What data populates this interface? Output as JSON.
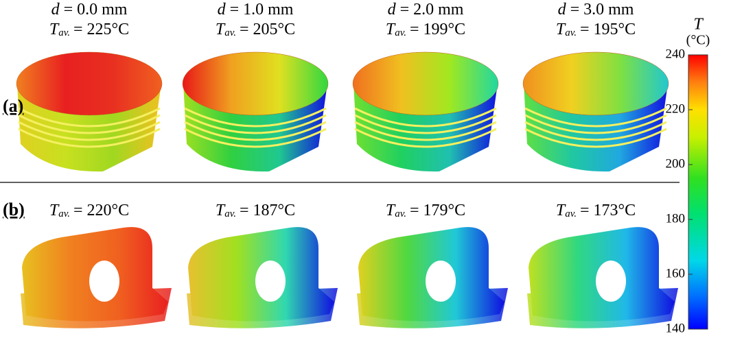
{
  "rows": [
    {
      "label": "(a)",
      "columns": [
        {
          "d_symbol": "d",
          "d_text": "= 0.0 mm",
          "t_symbol": "T",
          "t_sub": "av.",
          "t_text": "= 225°C"
        },
        {
          "d_symbol": "d",
          "d_text": "= 1.0 mm",
          "t_symbol": "T",
          "t_sub": "av.",
          "t_text": "= 205°C"
        },
        {
          "d_symbol": "d",
          "d_text": "= 2.0 mm",
          "t_symbol": "T",
          "t_sub": "av.",
          "t_text": "= 199°C"
        },
        {
          "d_symbol": "d",
          "d_text": "= 3.0 mm",
          "t_symbol": "T",
          "t_sub": "av.",
          "t_text": "= 195°C"
        }
      ]
    },
    {
      "label": "(b)",
      "columns": [
        {
          "t_symbol": "T",
          "t_sub": "av.",
          "t_text": "= 220°C"
        },
        {
          "t_symbol": "T",
          "t_sub": "av.",
          "t_text": "= 187°C"
        },
        {
          "t_symbol": "T",
          "t_sub": "av.",
          "t_text": "= 179°C"
        },
        {
          "t_symbol": "T",
          "t_sub": "av.",
          "t_text": "= 173°C"
        }
      ]
    }
  ],
  "colorbar": {
    "title": "T",
    "unit": "(°C)",
    "lim": [
      140,
      240
    ],
    "ticks": [
      140,
      160,
      180,
      200,
      220,
      240
    ]
  }
}
